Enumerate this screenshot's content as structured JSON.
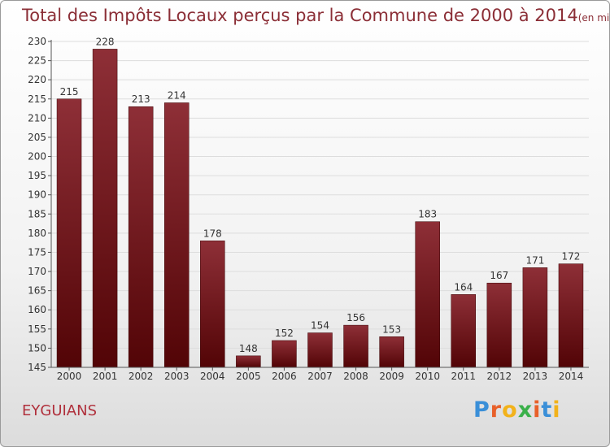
{
  "header": {
    "title": "Total des Impôts Locaux perçus par la Commune de 2000 à 2014",
    "subtitle": "(en milliers d'€)"
  },
  "commune": "EYGUIANS",
  "logo": {
    "text": "Proxiti",
    "letters": [
      "P",
      "r",
      "o",
      "x",
      "i",
      "t",
      "i"
    ],
    "colors": [
      "#3a8fd8",
      "#e8602a",
      "#f2b21a",
      "#3ab04a",
      "#e8602a",
      "#3a8fd8",
      "#f2b21a"
    ]
  },
  "colors": {
    "bar_top": "#8e2f37",
    "bar_bottom": "#520406",
    "grid": "#dddddd",
    "text": "#333333"
  },
  "chart_data": {
    "type": "bar",
    "title": "Total des Impôts Locaux perçus par la Commune de 2000 à 2014",
    "subtitle": "(en milliers d'€)",
    "categories": [
      "2000",
      "2001",
      "2002",
      "2003",
      "2004",
      "2005",
      "2006",
      "2007",
      "2008",
      "2009",
      "2010",
      "2011",
      "2012",
      "2013",
      "2014"
    ],
    "values": [
      215,
      228,
      213,
      214,
      178,
      148,
      152,
      154,
      156,
      153,
      183,
      164,
      167,
      171,
      172
    ],
    "ylim": [
      145,
      230
    ],
    "yticks": [
      145,
      150,
      155,
      160,
      165,
      170,
      175,
      180,
      185,
      190,
      195,
      200,
      205,
      210,
      215,
      220,
      225,
      230
    ],
    "xlabel": "",
    "ylabel": "",
    "grid": true
  }
}
